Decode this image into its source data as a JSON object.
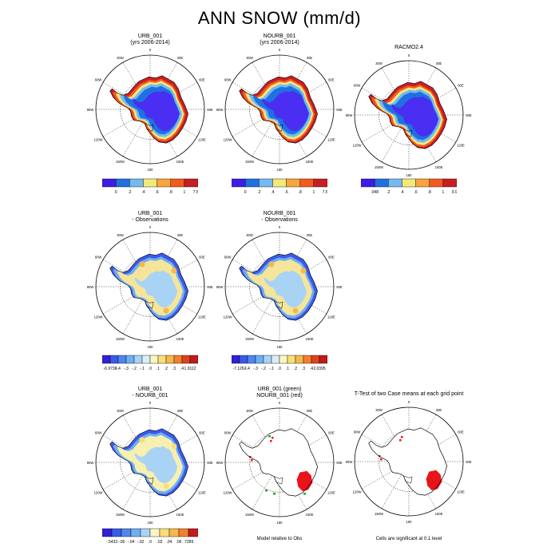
{
  "title": "ANN SNOW (mm/d)",
  "chart_data": [
    {
      "type": "heatmap",
      "title": "URB_001",
      "subtitle": "(yrs 2006-2014)",
      "projection": "south-polar-stereographic",
      "colorbar": {
        "labels": [
          "0",
          ".2",
          ".4",
          ".6",
          ".8",
          "1",
          "7.535"
        ],
        "colors": [
          "#3b1ee6",
          "#1f70e0",
          "#74b9f2",
          "#f3e97a",
          "#f7a43c",
          "#f25a1f",
          "#c81e22"
        ]
      },
      "interior": "#4a2ef2"
    },
    {
      "type": "heatmap",
      "title": "NOURB_001",
      "subtitle": "(yrs 2006-2014)",
      "projection": "south-polar-stereographic",
      "colorbar": {
        "labels": [
          "0",
          ".2",
          ".4",
          ".6",
          ".8",
          "1",
          "7.694"
        ],
        "colors": [
          "#3b1ee6",
          "#1f70e0",
          "#74b9f2",
          "#f3e97a",
          "#f7a43c",
          "#f25a1f",
          "#c81e22"
        ]
      },
      "interior": "#4a2ef2"
    },
    {
      "type": "heatmap",
      "title": "RACMO2.4",
      "subtitle": "",
      "projection": "south-polar-stereographic",
      "colorbar": {
        "labels": [
          ".048",
          ".2",
          ".4",
          ".6",
          ".8",
          "1",
          "9.989"
        ],
        "colors": [
          "#3b1ee6",
          "#1f70e0",
          "#74b9f2",
          "#f3e97a",
          "#f7a43c",
          "#f25a1f",
          "#c81e22"
        ]
      },
      "interior": "#4a2ef2"
    },
    {
      "type": "heatmap",
      "title": "URB_001",
      "subtitle": "- Observations",
      "projection": "south-polar-stereographic",
      "colorbar": {
        "labels": [
          "-6.9738",
          "-.4",
          "-.3",
          "-.2",
          "-.1",
          ".0",
          ".1",
          ".2",
          ".3",
          ".4",
          "1.9112"
        ],
        "colors": [
          "#3020d8",
          "#3a5ae8",
          "#4f86ee",
          "#70aef2",
          "#a9d3f5",
          "#d8edf8",
          "#fbf5c0",
          "#f7df78",
          "#f6b84c",
          "#f2812f",
          "#e0421d",
          "#c11b1b"
        ]
      },
      "interior": "#f4e59a"
    },
    {
      "type": "heatmap",
      "title": "NOURB_001",
      "subtitle": "- Observations",
      "projection": "south-polar-stereographic",
      "colorbar": {
        "labels": [
          "-7.1262",
          "-.4",
          "-.3",
          "-.2",
          "-.1",
          ".0",
          ".1",
          ".2",
          ".3",
          ".4",
          "2.0395"
        ],
        "colors": [
          "#3020d8",
          "#3a5ae8",
          "#4f86ee",
          "#70aef2",
          "#a9d3f5",
          "#d8edf8",
          "#fbf5c0",
          "#f7df78",
          "#f6b84c",
          "#f2812f",
          "#e0421d",
          "#c11b1b"
        ]
      },
      "interior": "#f4e59a"
    },
    {
      "type": "heatmap",
      "title": "URB_001",
      "subtitle": "- NOURB_001",
      "projection": "south-polar-stereographic",
      "colorbar": {
        "labels": [
          "-.5433",
          "-.06",
          "-.04",
          "-.02",
          ".0",
          ".02",
          ".04",
          ".06",
          ".7289"
        ],
        "colors": [
          "#3020d8",
          "#3a5ae8",
          "#4f86ee",
          "#70aef2",
          "#a9d3f5",
          "#fbf5c0",
          "#f7df78",
          "#f6b84c",
          "#f2812f",
          "#c11b1b"
        ]
      },
      "interior": "#f7f0b0"
    },
    {
      "type": "heatmap",
      "title": "URB_001 (green)",
      "subtitle": "NOURB_001 (red)",
      "projection": "south-polar-stereographic",
      "note": "Model relative to Obs"
    },
    {
      "type": "heatmap",
      "title": "T-Test of two Case means at each grid point",
      "subtitle": "",
      "projection": "south-polar-stereographic",
      "note": "Cells are significant at 0.1 level"
    }
  ],
  "lon_labels": {
    "0": "0",
    "30E": "30E",
    "60E": "60E",
    "90E": "90E",
    "120E": "120E",
    "150E": "150E",
    "180": "180",
    "150W": "150W",
    "120W": "120W",
    "90W": "90W",
    "60W": "60W",
    "30W": "30W"
  }
}
